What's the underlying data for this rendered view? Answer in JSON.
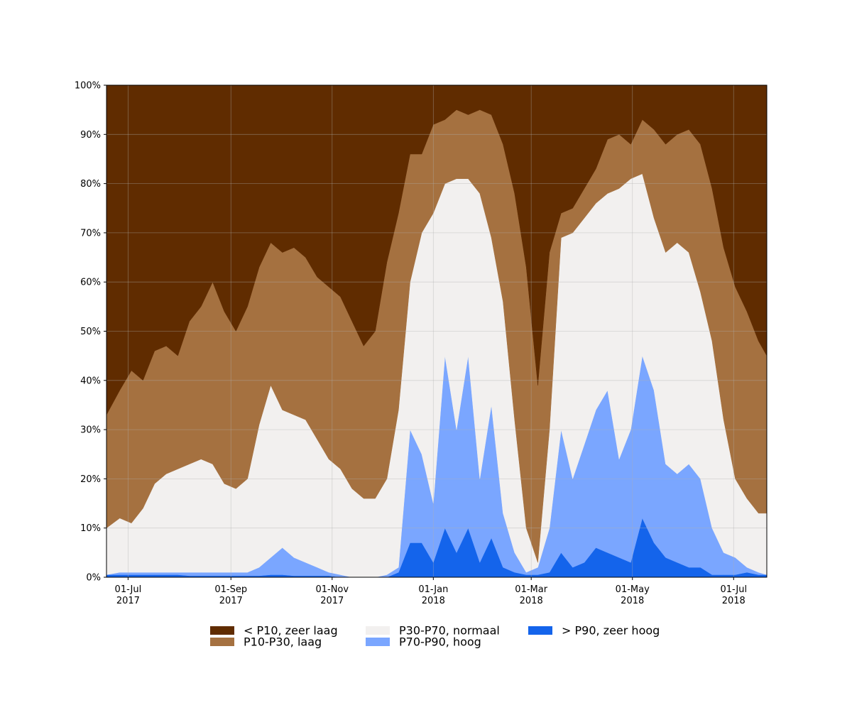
{
  "chart_data": {
    "type": "area",
    "stacked": true,
    "x_start": "2017-06-18",
    "x_end": "2018-07-21",
    "ylim": [
      0,
      100
    ],
    "grid": true,
    "legend_position": "bottom",
    "title": "",
    "xlabel": "",
    "ylabel": "",
    "yticks": [
      {
        "value": 0,
        "label": "0%"
      },
      {
        "value": 10,
        "label": "10%"
      },
      {
        "value": 20,
        "label": "20%"
      },
      {
        "value": 30,
        "label": "30%"
      },
      {
        "value": 40,
        "label": "40%"
      },
      {
        "value": 50,
        "label": "50%"
      },
      {
        "value": 60,
        "label": "60%"
      },
      {
        "value": 70,
        "label": "70%"
      },
      {
        "value": 80,
        "label": "80%"
      },
      {
        "value": 90,
        "label": "90%"
      },
      {
        "value": 100,
        "label": "100%"
      }
    ],
    "xticks": [
      {
        "date": "2017-07-01",
        "label_line1": "01-Jul",
        "label_line2": "2017"
      },
      {
        "date": "2017-09-01",
        "label_line1": "01-Sep",
        "label_line2": "2017"
      },
      {
        "date": "2017-11-01",
        "label_line1": "01-Nov",
        "label_line2": "2017"
      },
      {
        "date": "2018-01-01",
        "label_line1": "01-Jan",
        "label_line2": "2018"
      },
      {
        "date": "2018-03-01",
        "label_line1": "01-Mar",
        "label_line2": "2018"
      },
      {
        "date": "2018-05-01",
        "label_line1": "01-May",
        "label_line2": "2018"
      },
      {
        "date": "2018-07-01",
        "label_line1": "01-Jul",
        "label_line2": "2018"
      }
    ],
    "series": [
      {
        "label": "> P90, zeer hoog",
        "color": "#1464eb"
      },
      {
        "label": "P70-P90, hoog",
        "color": "#7aa6ff"
      },
      {
        "label": "P30-P70, normaal",
        "color": "#f2f0ef"
      },
      {
        "label": "P10-P30, laag",
        "color": "#a57140"
      },
      {
        "label": "< P10, zeer laag",
        "color": "#602c00"
      }
    ],
    "cumulative_boundaries": {
      "date": [
        "2017-06-18",
        "2017-06-26",
        "2017-07-03",
        "2017-07-10",
        "2017-07-17",
        "2017-07-24",
        "2017-07-31",
        "2017-08-07",
        "2017-08-14",
        "2017-08-21",
        "2017-08-28",
        "2017-09-04",
        "2017-09-11",
        "2017-09-18",
        "2017-09-25",
        "2017-10-02",
        "2017-10-09",
        "2017-10-16",
        "2017-10-23",
        "2017-10-30",
        "2017-11-06",
        "2017-11-13",
        "2017-11-20",
        "2017-11-27",
        "2017-12-04",
        "2017-12-11",
        "2017-12-18",
        "2017-12-25",
        "2018-01-01",
        "2018-01-08",
        "2018-01-15",
        "2018-01-22",
        "2018-01-29",
        "2018-02-05",
        "2018-02-12",
        "2018-02-19",
        "2018-02-26",
        "2018-03-05",
        "2018-03-12",
        "2018-03-19",
        "2018-03-26",
        "2018-04-02",
        "2018-04-09",
        "2018-04-16",
        "2018-04-23",
        "2018-04-30",
        "2018-05-07",
        "2018-05-14",
        "2018-05-21",
        "2018-05-28",
        "2018-06-04",
        "2018-06-11",
        "2018-06-18",
        "2018-06-25",
        "2018-07-02",
        "2018-07-09",
        "2018-07-16",
        "2018-07-21"
      ],
      "upper_zeer_hoog": [
        0.5,
        0.5,
        0.5,
        0.5,
        0.5,
        0.5,
        0.5,
        0.3,
        0.3,
        0.3,
        0.3,
        0.3,
        0.3,
        0.3,
        0.5,
        0.5,
        0.3,
        0.3,
        0.3,
        0.3,
        0,
        0,
        0,
        0,
        0,
        1,
        7,
        7,
        3,
        10,
        5,
        10,
        3,
        8,
        2,
        1,
        0.5,
        0.5,
        1,
        5,
        2,
        3,
        6,
        5,
        4,
        3,
        12,
        7,
        4,
        3,
        2,
        2,
        0.5,
        0.5,
        0.5,
        1,
        0.5,
        0.5
      ],
      "upper_hoog": [
        0.5,
        1,
        1,
        1,
        1,
        1,
        1,
        1,
        1,
        1,
        1,
        1,
        1,
        2,
        4,
        6,
        4,
        3,
        2,
        1,
        0.5,
        0,
        0,
        0,
        0.5,
        2,
        30,
        25,
        15,
        45,
        30,
        45,
        20,
        35,
        13,
        5,
        1,
        2,
        10,
        30,
        20,
        27,
        34,
        38,
        24,
        30,
        45,
        38,
        23,
        21,
        23,
        20,
        10,
        5,
        4,
        2,
        1,
        0.5
      ],
      "upper_normaal": [
        10,
        12,
        11,
        14,
        19,
        21,
        22,
        23,
        24,
        23,
        19,
        18,
        20,
        31,
        39,
        34,
        33,
        32,
        28,
        24,
        22,
        18,
        16,
        16,
        20,
        34,
        60,
        70,
        74,
        80,
        81,
        81,
        78,
        69,
        56,
        32,
        10,
        3,
        30,
        69,
        70,
        73,
        76,
        78,
        79,
        81,
        82,
        73,
        66,
        68,
        66,
        58,
        48,
        32,
        20,
        16,
        13,
        13
      ],
      "upper_laag": [
        33,
        38,
        42,
        40,
        46,
        47,
        45,
        52,
        55,
        60,
        54,
        50,
        55,
        63,
        68,
        66,
        67,
        65,
        61,
        59,
        57,
        52,
        47,
        50,
        64,
        74,
        86,
        86,
        92,
        93,
        95,
        94,
        95,
        94,
        88,
        78,
        63,
        39,
        66,
        74,
        75,
        79,
        83,
        89,
        90,
        88,
        93,
        91,
        88,
        90,
        91,
        88,
        79,
        67,
        59,
        54,
        48,
        45
      ],
      "upper_zeer_laag": [
        100,
        100,
        100,
        100,
        100,
        100,
        100,
        100,
        100,
        100,
        100,
        100,
        100,
        100,
        100,
        100,
        100,
        100,
        100,
        100,
        100,
        100,
        100,
        100,
        100,
        100,
        100,
        100,
        100,
        100,
        100,
        100,
        100,
        100,
        100,
        100,
        100,
        100,
        100,
        100,
        100,
        100,
        100,
        100,
        100,
        100,
        100,
        100,
        100,
        100,
        100,
        100,
        100,
        100,
        100,
        100,
        100,
        100
      ]
    }
  }
}
